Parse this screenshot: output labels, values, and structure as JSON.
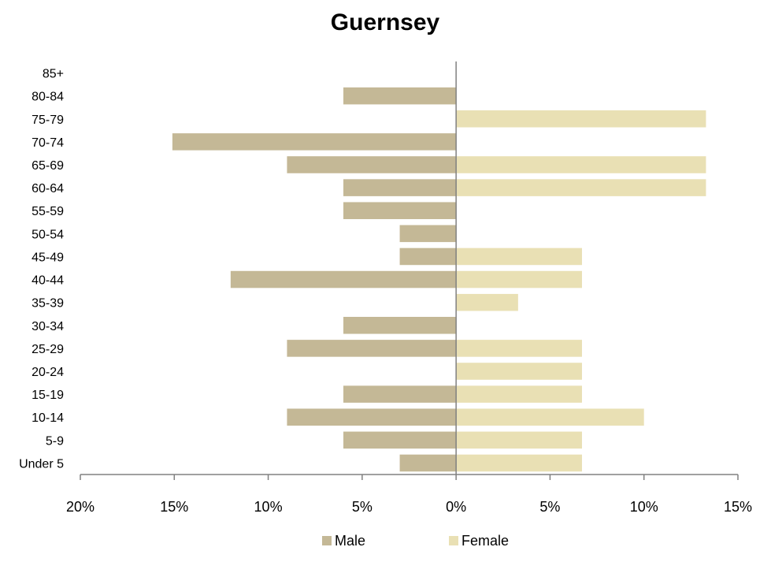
{
  "chart_data": {
    "type": "bar",
    "orientation": "horizontal",
    "title": "Guernsey",
    "categories": [
      "Under 5",
      "5-9",
      "10-14",
      "15-19",
      "20-24",
      "25-29",
      "30-34",
      "35-39",
      "40-44",
      "45-49",
      "50-54",
      "55-59",
      "60-64",
      "65-69",
      "70-74",
      "75-79",
      "80-84",
      "85+"
    ],
    "series": [
      {
        "name": "Male",
        "color": "#c4b896",
        "side": "left",
        "values": [
          3.0,
          6.0,
          9.0,
          6.0,
          0,
          9.0,
          6.0,
          0,
          12.0,
          3.0,
          3.0,
          6.0,
          6.0,
          9.0,
          15.1,
          0,
          6.0,
          0
        ]
      },
      {
        "name": "Female",
        "color": "#e9e0b4",
        "side": "right",
        "values": [
          6.7,
          6.7,
          10.0,
          6.7,
          6.7,
          6.7,
          0,
          3.3,
          6.7,
          6.7,
          0,
          0,
          13.3,
          13.3,
          0,
          13.3,
          0,
          0
        ]
      }
    ],
    "xlim": [
      -20,
      15
    ],
    "xticks": [
      -20,
      -15,
      -10,
      -5,
      0,
      5,
      10,
      15
    ],
    "xtick_labels": [
      "20%",
      "15%",
      "10%",
      "5%",
      "0%",
      "5%",
      "10%",
      "15%"
    ],
    "legend": "bottom",
    "grid": false
  }
}
